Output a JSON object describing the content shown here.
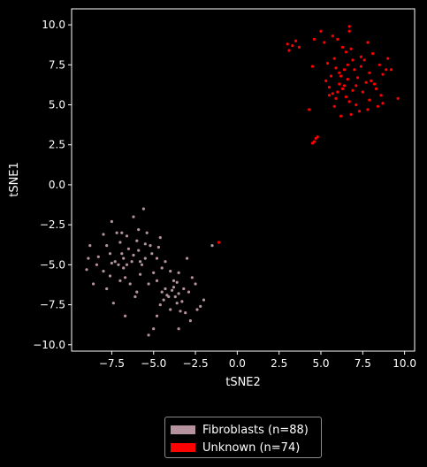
{
  "chart_data": {
    "type": "scatter",
    "title": "",
    "xlabel": "tSNE2",
    "ylabel": "tSNE1",
    "xlim": [
      -9.9,
      10.6
    ],
    "ylim": [
      -10.4,
      11.0
    ],
    "xticks": [
      -7.5,
      -5.0,
      -2.5,
      0.0,
      2.5,
      5.0,
      7.5,
      10.0
    ],
    "xtick_labels": [
      "−7.5",
      "−5.0",
      "−2.5",
      "0.0",
      "2.5",
      "5.0",
      "7.5",
      "10.0"
    ],
    "yticks": [
      -10.0,
      -7.5,
      -5.0,
      -2.5,
      0.0,
      2.5,
      5.0,
      7.5,
      10.0
    ],
    "ytick_labels": [
      "−10.0",
      "−7.5",
      "−5.0",
      "−2.5",
      "0.0",
      "2.5",
      "5.0",
      "7.5",
      "10.0"
    ],
    "grid": false,
    "legend_position": "below",
    "series": [
      {
        "name": "Fibroblasts (n=88)",
        "color": "#b5939e",
        "points": [
          [
            -9.0,
            -5.3
          ],
          [
            -8.8,
            -3.8
          ],
          [
            -8.6,
            -6.2
          ],
          [
            -8.9,
            -4.6
          ],
          [
            -8.3,
            -4.5
          ],
          [
            -8.0,
            -3.1
          ],
          [
            -7.8,
            -3.8
          ],
          [
            -7.6,
            -5.7
          ],
          [
            -7.8,
            -6.5
          ],
          [
            -7.3,
            -4.8
          ],
          [
            -7.5,
            -2.3
          ],
          [
            -7.2,
            -3.0
          ],
          [
            -7.0,
            -3.6
          ],
          [
            -6.9,
            -4.3
          ],
          [
            -7.1,
            -5.0
          ],
          [
            -6.8,
            -5.2
          ],
          [
            -6.6,
            -3.2
          ],
          [
            -6.5,
            -4.0
          ],
          [
            -6.3,
            -4.8
          ],
          [
            -6.7,
            -5.8
          ],
          [
            -6.4,
            -6.2
          ],
          [
            -6.2,
            -2.0
          ],
          [
            -6.0,
            -3.5
          ],
          [
            -5.9,
            -4.1
          ],
          [
            -5.7,
            -5.0
          ],
          [
            -5.5,
            -4.6
          ],
          [
            -5.8,
            -5.6
          ],
          [
            -6.1,
            -7.0
          ],
          [
            -5.4,
            -3.0
          ],
          [
            -5.2,
            -3.8
          ],
          [
            -5.0,
            -5.5
          ],
          [
            -4.8,
            -4.6
          ],
          [
            -4.6,
            -3.3
          ],
          [
            -4.5,
            -5.2
          ],
          [
            -5.3,
            -6.2
          ],
          [
            -5.6,
            -1.5
          ],
          [
            -4.3,
            -4.8
          ],
          [
            -4.0,
            -5.4
          ],
          [
            -3.8,
            -6.0
          ],
          [
            -3.5,
            -5.5
          ],
          [
            -3.0,
            -4.6
          ],
          [
            -2.7,
            -5.8
          ],
          [
            -2.5,
            -6.2
          ],
          [
            -2.2,
            -7.6
          ],
          [
            -2.0,
            -7.2
          ],
          [
            -3.2,
            -6.5
          ],
          [
            -3.5,
            -6.8
          ],
          [
            -3.7,
            -7.0
          ],
          [
            -3.9,
            -6.6
          ],
          [
            -4.2,
            -6.9
          ],
          [
            -4.4,
            -7.2
          ],
          [
            -4.6,
            -7.5
          ],
          [
            -4.0,
            -7.8
          ],
          [
            -3.6,
            -7.4
          ],
          [
            -3.4,
            -7.9
          ],
          [
            -3.1,
            -8.0
          ],
          [
            -2.8,
            -8.5
          ],
          [
            -2.4,
            -7.8
          ],
          [
            -4.8,
            -8.2
          ],
          [
            -5.0,
            -9.0
          ],
          [
            -5.3,
            -9.4
          ],
          [
            -6.7,
            -8.2
          ],
          [
            -7.4,
            -7.4
          ],
          [
            -6.0,
            -6.7
          ],
          [
            -4.3,
            -6.5
          ],
          [
            -3.8,
            -6.4
          ],
          [
            -3.3,
            -7.3
          ],
          [
            -4.1,
            -7.0
          ],
          [
            -5.5,
            -3.7
          ],
          [
            -6.8,
            -4.6
          ],
          [
            -7.5,
            -4.9
          ],
          [
            -8.0,
            -5.4
          ],
          [
            -7.0,
            -6.0
          ],
          [
            -6.6,
            -5.0
          ],
          [
            -5.1,
            -4.3
          ],
          [
            -4.8,
            -6.0
          ],
          [
            -3.6,
            -6.1
          ],
          [
            -2.9,
            -6.7
          ],
          [
            -4.5,
            -6.7
          ],
          [
            -6.2,
            -4.4
          ],
          [
            -5.8,
            -4.8
          ],
          [
            -4.7,
            -3.9
          ],
          [
            -7.6,
            -4.3
          ],
          [
            -8.4,
            -5.0
          ],
          [
            -6.9,
            -3.0
          ],
          [
            -5.9,
            -2.8
          ],
          [
            -1.5,
            -3.8
          ],
          [
            -3.5,
            -9.0
          ]
        ]
      },
      {
        "name": "Unknown (n=74)",
        "color": "#ff0000",
        "points": [
          [
            3.0,
            8.8
          ],
          [
            3.1,
            8.4
          ],
          [
            3.3,
            8.7
          ],
          [
            3.5,
            9.0
          ],
          [
            3.7,
            8.6
          ],
          [
            4.6,
            9.1
          ],
          [
            4.5,
            7.4
          ],
          [
            5.0,
            9.6
          ],
          [
            5.2,
            8.9
          ],
          [
            5.4,
            7.6
          ],
          [
            5.7,
            9.3
          ],
          [
            6.0,
            9.1
          ],
          [
            6.3,
            8.6
          ],
          [
            6.5,
            8.3
          ],
          [
            6.7,
            9.9
          ],
          [
            6.7,
            9.6
          ],
          [
            6.8,
            8.5
          ],
          [
            6.6,
            7.5
          ],
          [
            6.4,
            7.2
          ],
          [
            6.2,
            6.8
          ],
          [
            5.8,
            7.9
          ],
          [
            5.9,
            7.3
          ],
          [
            5.6,
            6.8
          ],
          [
            5.5,
            6.1
          ],
          [
            5.7,
            5.7
          ],
          [
            5.9,
            5.4
          ],
          [
            6.1,
            6.3
          ],
          [
            6.3,
            6.0
          ],
          [
            6.5,
            5.5
          ],
          [
            6.7,
            5.2
          ],
          [
            6.9,
            5.9
          ],
          [
            7.1,
            6.2
          ],
          [
            7.2,
            6.7
          ],
          [
            7.0,
            7.2
          ],
          [
            7.4,
            7.4
          ],
          [
            7.6,
            7.8
          ],
          [
            7.8,
            8.9
          ],
          [
            7.9,
            7.0
          ],
          [
            8.0,
            6.5
          ],
          [
            8.1,
            8.2
          ],
          [
            8.3,
            6.0
          ],
          [
            8.5,
            7.5
          ],
          [
            8.7,
            6.9
          ],
          [
            8.9,
            7.2
          ],
          [
            9.0,
            7.9
          ],
          [
            9.2,
            7.2
          ],
          [
            8.6,
            5.6
          ],
          [
            8.4,
            4.9
          ],
          [
            8.7,
            5.1
          ],
          [
            9.6,
            5.4
          ],
          [
            7.8,
            4.7
          ],
          [
            7.3,
            4.6
          ],
          [
            6.8,
            4.4
          ],
          [
            6.2,
            4.3
          ],
          [
            5.8,
            4.9
          ],
          [
            6.0,
            5.8
          ],
          [
            6.6,
            6.6
          ],
          [
            7.5,
            5.8
          ],
          [
            7.7,
            6.4
          ],
          [
            6.9,
            7.8
          ],
          [
            6.4,
            6.2
          ],
          [
            5.5,
            5.6
          ],
          [
            7.1,
            5.0
          ],
          [
            4.5,
            2.6
          ],
          [
            4.6,
            2.7
          ],
          [
            4.7,
            2.9
          ],
          [
            4.8,
            3.0
          ],
          [
            4.3,
            4.7
          ],
          [
            -1.1,
            -3.6
          ],
          [
            7.9,
            5.3
          ],
          [
            6.1,
            7.0
          ],
          [
            5.3,
            6.5
          ],
          [
            8.2,
            6.3
          ],
          [
            7.4,
            8.0
          ]
        ]
      }
    ]
  }
}
